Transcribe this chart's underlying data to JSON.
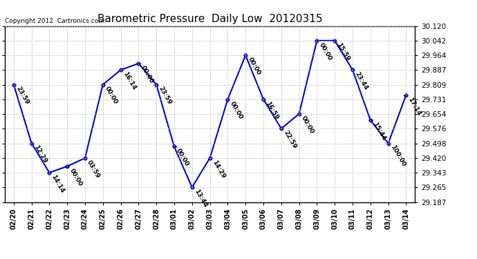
{
  "title": "Barometric Pressure  Daily Low  20120315",
  "copyright": "Copyright 2012  Cartronics.com",
  "dates": [
    "02/20",
    "02/21",
    "02/22",
    "02/23",
    "02/24",
    "02/25",
    "02/26",
    "02/27",
    "02/28",
    "03/01",
    "03/02",
    "03/03",
    "03/04",
    "03/05",
    "03/06",
    "03/07",
    "03/08",
    "03/09",
    "03/10",
    "03/11",
    "03/12",
    "03/13",
    "03/14"
  ],
  "values": [
    29.809,
    29.498,
    29.343,
    29.376,
    29.42,
    29.809,
    29.887,
    29.921,
    29.809,
    29.48,
    29.265,
    29.42,
    29.731,
    29.964,
    29.731,
    29.576,
    29.654,
    30.042,
    30.042,
    29.887,
    29.621,
    29.498,
    29.753
  ],
  "annotations": [
    "23:59",
    "12:29",
    "14:14",
    "00:00",
    "03:59",
    "00:00",
    "16:14",
    "00:00",
    "23:59",
    "00:00",
    "13:44",
    "14:29",
    "00:00",
    "00:00",
    "16:59",
    "22:59",
    "00:00",
    "00:00",
    "15:59",
    "23:44",
    "15:44",
    "100:00",
    "17:14"
  ],
  "ylim": [
    29.187,
    30.12
  ],
  "yticks": [
    29.187,
    29.265,
    29.343,
    29.42,
    29.498,
    29.576,
    29.654,
    29.731,
    29.809,
    29.887,
    29.964,
    30.042,
    30.12
  ],
  "line_color": "#0000cc",
  "marker_color": "#0000cc",
  "background_color": "#ffffff",
  "grid_color": "#bbbbbb",
  "title_fontsize": 11,
  "annot_fontsize": 6.5,
  "copyright_fontsize": 6.5
}
